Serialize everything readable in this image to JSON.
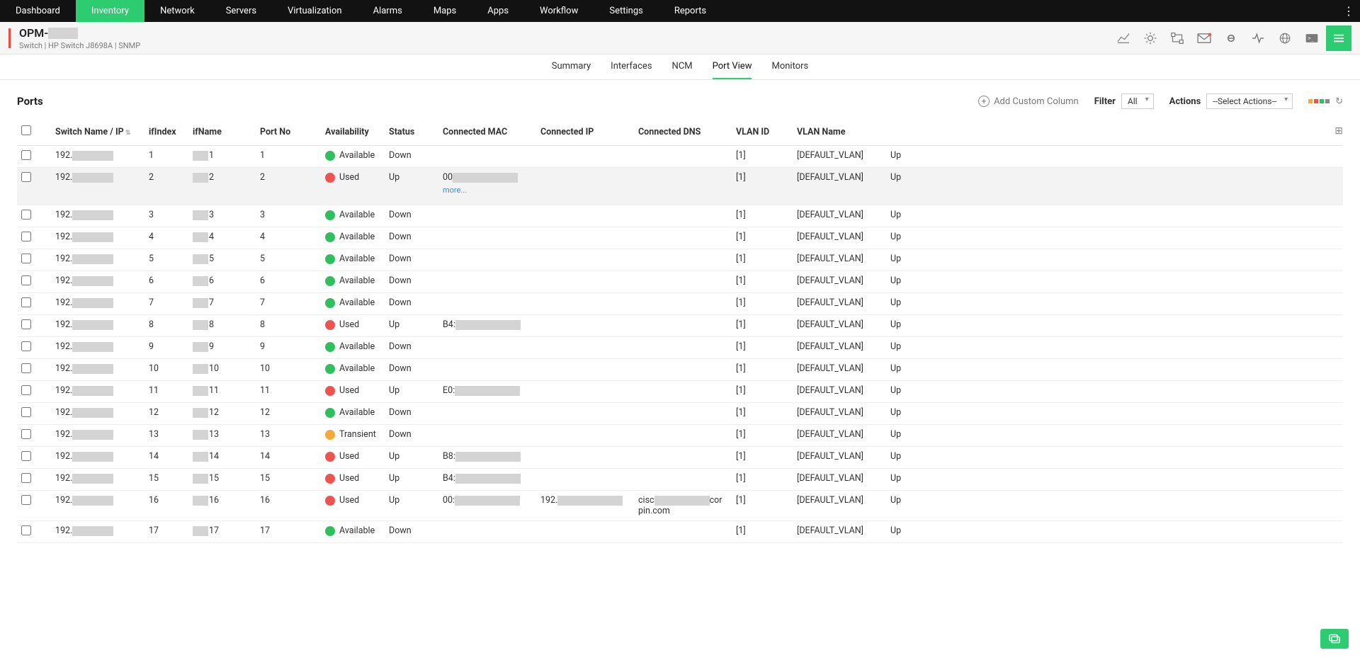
{
  "palette": {
    "brand": "#2ecc71",
    "danger": "#e74c3c",
    "avail_green": "#2fbf5d",
    "used_red": "#ef5350",
    "transient_orange": "#f4a93a",
    "mask": "#d4d4d4",
    "gridicon": [
      "#f4a93a",
      "#ef5350",
      "#2fbf5d",
      "#888888"
    ]
  },
  "topnav": {
    "tabs": [
      "Dashboard",
      "Inventory",
      "Network",
      "Servers",
      "Virtualization",
      "Alarms",
      "Maps",
      "Apps",
      "Workflow",
      "Settings",
      "Reports"
    ],
    "active": "Inventory"
  },
  "devbar": {
    "title_prefix": "OPM-",
    "subtitle": "Switch | HP Switch J8698A  | SNMP",
    "icons": [
      "chart-icon",
      "sun-icon",
      "swap-icon",
      "mail-icon",
      "link-icon",
      "activity-icon",
      "globe-icon",
      "terminal-icon",
      "hamburger-icon"
    ]
  },
  "subtabs": {
    "items": [
      "Summary",
      "Interfaces",
      "NCM",
      "Port View",
      "Monitors"
    ],
    "active": "Port View"
  },
  "toolbar": {
    "section_title": "Ports",
    "add_column": "Add Custom Column",
    "filter_label": "Filter",
    "filter_value": "All",
    "actions_label": "Actions",
    "actions_value": "--Select Actions--"
  },
  "columns": [
    "Switch Name / IP",
    "ifIndex",
    "ifName",
    "Port No",
    "Availability",
    "Status",
    "Connected MAC",
    "Connected IP",
    "Connected DNS",
    "VLAN ID",
    "VLAN Name"
  ],
  "availability_map": {
    "Available": "#2fbf5d",
    "Used": "#ef5350",
    "Transient": "#f4a93a"
  },
  "rows": [
    {
      "switch": "192.",
      "ifIndex": "1",
      "ifSuffix": "1",
      "portNo": "1",
      "avail": "Available",
      "status": "Down",
      "mac": "",
      "ip": "",
      "dns": "",
      "vlanId": "[1]",
      "vlanName": "[DEFAULT_VLAN]",
      "tail": "Up"
    },
    {
      "switch": "192.",
      "ifIndex": "2",
      "ifSuffix": "2",
      "portNo": "2",
      "avail": "Used",
      "status": "Up",
      "mac": "00",
      "more": true,
      "ip": "",
      "dns": "",
      "vlanId": "[1]",
      "vlanName": "[DEFAULT_VLAN]",
      "tail": "Up",
      "hl": true
    },
    {
      "switch": "192.",
      "ifIndex": "3",
      "ifSuffix": "3",
      "portNo": "3",
      "avail": "Available",
      "status": "Down",
      "mac": "",
      "ip": "",
      "dns": "",
      "vlanId": "[1]",
      "vlanName": "[DEFAULT_VLAN]",
      "tail": "Up"
    },
    {
      "switch": "192.",
      "ifIndex": "4",
      "ifSuffix": "4",
      "portNo": "4",
      "avail": "Available",
      "status": "Down",
      "mac": "",
      "ip": "",
      "dns": "",
      "vlanId": "[1]",
      "vlanName": "[DEFAULT_VLAN]",
      "tail": "Up"
    },
    {
      "switch": "192.",
      "ifIndex": "5",
      "ifSuffix": "5",
      "portNo": "5",
      "avail": "Available",
      "status": "Down",
      "mac": "",
      "ip": "",
      "dns": "",
      "vlanId": "[1]",
      "vlanName": "[DEFAULT_VLAN]",
      "tail": "Up"
    },
    {
      "switch": "192.",
      "ifIndex": "6",
      "ifSuffix": "6",
      "portNo": "6",
      "avail": "Available",
      "status": "Down",
      "mac": "",
      "ip": "",
      "dns": "",
      "vlanId": "[1]",
      "vlanName": "[DEFAULT_VLAN]",
      "tail": "Up"
    },
    {
      "switch": "192.",
      "ifIndex": "7",
      "ifSuffix": "7",
      "portNo": "7",
      "avail": "Available",
      "status": "Down",
      "mac": "",
      "ip": "",
      "dns": "",
      "vlanId": "[1]",
      "vlanName": "[DEFAULT_VLAN]",
      "tail": "Up"
    },
    {
      "switch": "192.",
      "ifIndex": "8",
      "ifSuffix": "8",
      "portNo": "8",
      "avail": "Used",
      "status": "Up",
      "mac": "B4:",
      "ip": "",
      "dns": "",
      "vlanId": "[1]",
      "vlanName": "[DEFAULT_VLAN]",
      "tail": "Up"
    },
    {
      "switch": "192.",
      "ifIndex": "9",
      "ifSuffix": "9",
      "portNo": "9",
      "avail": "Available",
      "status": "Down",
      "mac": "",
      "ip": "",
      "dns": "",
      "vlanId": "[1]",
      "vlanName": "[DEFAULT_VLAN]",
      "tail": "Up"
    },
    {
      "switch": "192.",
      "ifIndex": "10",
      "ifSuffix": "10",
      "portNo": "10",
      "avail": "Available",
      "status": "Down",
      "mac": "",
      "ip": "",
      "dns": "",
      "vlanId": "[1]",
      "vlanName": "[DEFAULT_VLAN]",
      "tail": "Up"
    },
    {
      "switch": "192.",
      "ifIndex": "11",
      "ifSuffix": "11",
      "portNo": "11",
      "avail": "Used",
      "status": "Up",
      "mac": "E0:",
      "ip": "",
      "dns": "",
      "vlanId": "[1]",
      "vlanName": "[DEFAULT_VLAN]",
      "tail": "Up"
    },
    {
      "switch": "192.",
      "ifIndex": "12",
      "ifSuffix": "12",
      "portNo": "12",
      "avail": "Available",
      "status": "Down",
      "mac": "",
      "ip": "",
      "dns": "",
      "vlanId": "[1]",
      "vlanName": "[DEFAULT_VLAN]",
      "tail": "Up"
    },
    {
      "switch": "192.",
      "ifIndex": "13",
      "ifSuffix": "13",
      "portNo": "13",
      "avail": "Transient",
      "status": "Down",
      "mac": "",
      "ip": "",
      "dns": "",
      "vlanId": "[1]",
      "vlanName": "[DEFAULT_VLAN]",
      "tail": "Up"
    },
    {
      "switch": "192.",
      "ifIndex": "14",
      "ifSuffix": "14",
      "portNo": "14",
      "avail": "Used",
      "status": "Up",
      "mac": "B8:",
      "ip": "",
      "dns": "",
      "vlanId": "[1]",
      "vlanName": "[DEFAULT_VLAN]",
      "tail": "Up"
    },
    {
      "switch": "192.",
      "ifIndex": "15",
      "ifSuffix": "15",
      "portNo": "15",
      "avail": "Used",
      "status": "Up",
      "mac": "B4:",
      "ip": "",
      "dns": "",
      "vlanId": "[1]",
      "vlanName": "[DEFAULT_VLAN]",
      "tail": "Up"
    },
    {
      "switch": "192.",
      "ifIndex": "16",
      "ifSuffix": "16",
      "portNo": "16",
      "avail": "Used",
      "status": "Up",
      "mac": "00:",
      "ip": "192.",
      "dns_pre": "cisc",
      "dns_suf": "cor",
      "dns_line2": "pin.com",
      "vlanId": "[1]",
      "vlanName": "[DEFAULT_VLAN]",
      "tail": "Up"
    },
    {
      "switch": "192.",
      "ifIndex": "17",
      "ifSuffix": "17",
      "portNo": "17",
      "avail": "Available",
      "status": "Down",
      "mac": "",
      "ip": "",
      "dns": "",
      "vlanId": "[1]",
      "vlanName": "[DEFAULT_VLAN]",
      "tail": "Up"
    }
  ],
  "more_label": "more..."
}
